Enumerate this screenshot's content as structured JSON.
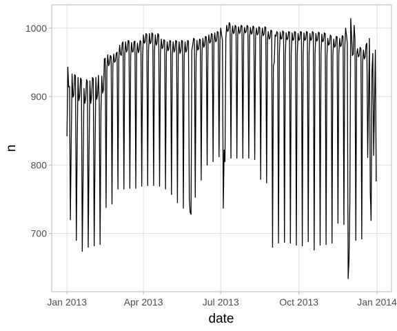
{
  "chart_data": {
    "type": "line",
    "xlabel": "date",
    "ylabel": "n",
    "color": "#000000",
    "grid": true,
    "xlim": [
      "2012-12-14",
      "2014-01-18"
    ],
    "xticks": [
      {
        "value": "2013-01-01",
        "label": "Jan 2013"
      },
      {
        "value": "2013-04-01",
        "label": "Apr 2013"
      },
      {
        "value": "2013-07-01",
        "label": "Jul 2013"
      },
      {
        "value": "2013-10-01",
        "label": "Oct 2013"
      },
      {
        "value": "2014-01-01",
        "label": "Jan 2014"
      }
    ],
    "ylim": [
      615,
      1034
    ],
    "yticks": [
      700,
      800,
      900,
      1000
    ],
    "x": [
      "2013-01-01",
      "2013-01-02",
      "2013-01-03",
      "2013-01-04",
      "2013-01-05",
      "2013-01-06",
      "2013-01-07",
      "2013-01-08",
      "2013-01-09",
      "2013-01-10",
      "2013-01-11",
      "2013-01-12",
      "2013-01-13",
      "2013-01-14",
      "2013-01-15",
      "2013-01-16",
      "2013-01-17",
      "2013-01-18",
      "2013-01-19",
      "2013-01-20",
      "2013-01-21",
      "2013-01-22",
      "2013-01-23",
      "2013-01-24",
      "2013-01-25",
      "2013-01-26",
      "2013-01-27",
      "2013-01-28",
      "2013-01-29",
      "2013-01-30",
      "2013-01-31",
      "2013-02-01",
      "2013-02-02",
      "2013-02-03",
      "2013-02-04",
      "2013-02-05",
      "2013-02-06",
      "2013-02-07",
      "2013-02-08",
      "2013-02-09",
      "2013-02-10",
      "2013-02-11",
      "2013-02-12",
      "2013-02-13",
      "2013-02-14",
      "2013-02-15",
      "2013-02-16",
      "2013-02-17",
      "2013-02-18",
      "2013-02-19",
      "2013-02-20",
      "2013-02-21",
      "2013-02-22",
      "2013-02-23",
      "2013-02-24",
      "2013-02-25",
      "2013-02-26",
      "2013-02-27",
      "2013-02-28",
      "2013-03-01",
      "2013-03-02",
      "2013-03-03",
      "2013-03-04",
      "2013-03-05",
      "2013-03-06",
      "2013-03-07",
      "2013-03-08",
      "2013-03-09",
      "2013-03-10",
      "2013-03-11",
      "2013-03-12",
      "2013-03-13",
      "2013-03-14",
      "2013-03-15",
      "2013-03-16",
      "2013-03-17",
      "2013-03-18",
      "2013-03-19",
      "2013-03-20",
      "2013-03-21",
      "2013-03-22",
      "2013-03-23",
      "2013-03-24",
      "2013-03-25",
      "2013-03-26",
      "2013-03-27",
      "2013-03-28",
      "2013-03-29",
      "2013-03-30",
      "2013-03-31",
      "2013-04-01",
      "2013-04-02",
      "2013-04-03",
      "2013-04-04",
      "2013-04-05",
      "2013-04-06",
      "2013-04-07",
      "2013-04-08",
      "2013-04-09",
      "2013-04-10",
      "2013-04-11",
      "2013-04-12",
      "2013-04-13",
      "2013-04-14",
      "2013-04-15",
      "2013-04-16",
      "2013-04-17",
      "2013-04-18",
      "2013-04-19",
      "2013-04-20",
      "2013-04-21",
      "2013-04-22",
      "2013-04-23",
      "2013-04-24",
      "2013-04-25",
      "2013-04-26",
      "2013-04-27",
      "2013-04-28",
      "2013-04-29",
      "2013-04-30",
      "2013-05-01",
      "2013-05-02",
      "2013-05-03",
      "2013-05-04",
      "2013-05-05",
      "2013-05-06",
      "2013-05-07",
      "2013-05-08",
      "2013-05-09",
      "2013-05-10",
      "2013-05-11",
      "2013-05-12",
      "2013-05-13",
      "2013-05-14",
      "2013-05-15",
      "2013-05-16",
      "2013-05-17",
      "2013-05-18",
      "2013-05-19",
      "2013-05-20",
      "2013-05-21",
      "2013-05-22",
      "2013-05-23",
      "2013-05-24",
      "2013-05-25",
      "2013-05-26",
      "2013-05-27",
      "2013-05-28",
      "2013-05-29",
      "2013-05-30",
      "2013-05-31",
      "2013-06-01",
      "2013-06-02",
      "2013-06-03",
      "2013-06-04",
      "2013-06-05",
      "2013-06-06",
      "2013-06-07",
      "2013-06-08",
      "2013-06-09",
      "2013-06-10",
      "2013-06-11",
      "2013-06-12",
      "2013-06-13",
      "2013-06-14",
      "2013-06-15",
      "2013-06-16",
      "2013-06-17",
      "2013-06-18",
      "2013-06-19",
      "2013-06-20",
      "2013-06-21",
      "2013-06-22",
      "2013-06-23",
      "2013-06-24",
      "2013-06-25",
      "2013-06-26",
      "2013-06-27",
      "2013-06-28",
      "2013-06-29",
      "2013-06-30",
      "2013-07-01",
      "2013-07-02",
      "2013-07-03",
      "2013-07-04",
      "2013-07-05",
      "2013-07-06",
      "2013-07-07",
      "2013-07-08",
      "2013-07-09",
      "2013-07-10",
      "2013-07-11",
      "2013-07-12",
      "2013-07-13",
      "2013-07-14",
      "2013-07-15",
      "2013-07-16",
      "2013-07-17",
      "2013-07-18",
      "2013-07-19",
      "2013-07-20",
      "2013-07-21",
      "2013-07-22",
      "2013-07-23",
      "2013-07-24",
      "2013-07-25",
      "2013-07-26",
      "2013-07-27",
      "2013-07-28",
      "2013-07-29",
      "2013-07-30",
      "2013-07-31",
      "2013-08-01",
      "2013-08-02",
      "2013-08-03",
      "2013-08-04",
      "2013-08-05",
      "2013-08-06",
      "2013-08-07",
      "2013-08-08",
      "2013-08-09",
      "2013-08-10",
      "2013-08-11",
      "2013-08-12",
      "2013-08-13",
      "2013-08-14",
      "2013-08-15",
      "2013-08-16",
      "2013-08-17",
      "2013-08-18",
      "2013-08-19",
      "2013-08-20",
      "2013-08-21",
      "2013-08-22",
      "2013-08-23",
      "2013-08-24",
      "2013-08-25",
      "2013-08-26",
      "2013-08-27",
      "2013-08-28",
      "2013-08-29",
      "2013-08-30",
      "2013-08-31",
      "2013-09-01",
      "2013-09-02",
      "2013-09-03",
      "2013-09-04",
      "2013-09-05",
      "2013-09-06",
      "2013-09-07",
      "2013-09-08",
      "2013-09-09",
      "2013-09-10",
      "2013-09-11",
      "2013-09-12",
      "2013-09-13",
      "2013-09-14",
      "2013-09-15",
      "2013-09-16",
      "2013-09-17",
      "2013-09-18",
      "2013-09-19",
      "2013-09-20",
      "2013-09-21",
      "2013-09-22",
      "2013-09-23",
      "2013-09-24",
      "2013-09-25",
      "2013-09-26",
      "2013-09-27",
      "2013-09-28",
      "2013-09-29",
      "2013-09-30",
      "2013-10-01",
      "2013-10-02",
      "2013-10-03",
      "2013-10-04",
      "2013-10-05",
      "2013-10-06",
      "2013-10-07",
      "2013-10-08",
      "2013-10-09",
      "2013-10-10",
      "2013-10-11",
      "2013-10-12",
      "2013-10-13",
      "2013-10-14",
      "2013-10-15",
      "2013-10-16",
      "2013-10-17",
      "2013-10-18",
      "2013-10-19",
      "2013-10-20",
      "2013-10-21",
      "2013-10-22",
      "2013-10-23",
      "2013-10-24",
      "2013-10-25",
      "2013-10-26",
      "2013-10-27",
      "2013-10-28",
      "2013-10-29",
      "2013-10-30",
      "2013-10-31",
      "2013-11-01",
      "2013-11-02",
      "2013-11-03",
      "2013-11-04",
      "2013-11-05",
      "2013-11-06",
      "2013-11-07",
      "2013-11-08",
      "2013-11-09",
      "2013-11-10",
      "2013-11-11",
      "2013-11-12",
      "2013-11-13",
      "2013-11-14",
      "2013-11-15",
      "2013-11-16",
      "2013-11-17",
      "2013-11-18",
      "2013-11-19",
      "2013-11-20",
      "2013-11-21",
      "2013-11-22",
      "2013-11-23",
      "2013-11-24",
      "2013-11-25",
      "2013-11-26",
      "2013-11-27",
      "2013-11-28",
      "2013-11-29",
      "2013-11-30",
      "2013-12-01",
      "2013-12-02",
      "2013-12-03",
      "2013-12-04",
      "2013-12-05",
      "2013-12-06",
      "2013-12-07",
      "2013-12-08",
      "2013-12-09",
      "2013-12-10",
      "2013-12-11",
      "2013-12-12",
      "2013-12-13",
      "2013-12-14",
      "2013-12-15",
      "2013-12-16",
      "2013-12-17",
      "2013-12-18",
      "2013-12-19",
      "2013-12-20",
      "2013-12-21",
      "2013-12-22",
      "2013-12-23",
      "2013-12-24",
      "2013-12-25",
      "2013-12-26",
      "2013-12-27",
      "2013-12-28",
      "2013-12-29",
      "2013-12-30",
      "2013-12-31"
    ],
    "values": [
      842,
      943,
      914,
      915,
      720,
      832,
      933,
      899,
      902,
      932,
      930,
      690,
      828,
      928,
      894,
      901,
      927,
      924,
      674,
      786,
      912,
      890,
      897,
      925,
      922,
      680,
      823,
      923,
      890,
      900,
      928,
      926,
      682,
      814,
      928,
      896,
      902,
      931,
      892,
      684,
      880,
      930,
      905,
      910,
      955,
      956,
      738,
      940,
      961,
      945,
      948,
      960,
      958,
      743,
      945,
      962,
      950,
      952,
      963,
      965,
      765,
      955,
      975,
      962,
      960,
      978,
      980,
      765,
      962,
      980,
      965,
      968,
      982,
      981,
      766,
      960,
      979,
      965,
      966,
      980,
      981,
      766,
      962,
      978,
      964,
      968,
      982,
      980,
      769,
      960,
      990,
      978,
      980,
      992,
      990,
      770,
      968,
      992,
      977,
      980,
      993,
      991,
      770,
      967,
      990,
      975,
      978,
      992,
      990,
      769,
      964,
      984,
      970,
      972,
      983,
      982,
      765,
      962,
      980,
      967,
      970,
      982,
      981,
      757,
      962,
      980,
      965,
      968,
      982,
      981,
      745,
      960,
      980,
      963,
      967,
      982,
      981,
      737,
      958,
      980,
      965,
      968,
      982,
      981,
      750,
      731,
      728,
      968,
      975,
      985,
      984,
      753,
      955,
      982,
      968,
      970,
      984,
      983,
      778,
      966,
      985,
      972,
      975,
      988,
      987,
      800,
      978,
      990,
      978,
      980,
      992,
      991,
      805,
      980,
      993,
      980,
      982,
      995,
      994,
      812,
      982,
      1000,
      990,
      982,
      737,
      822,
      805,
      985,
      1004,
      995,
      997,
      1008,
      1005,
      810,
      990,
      1003,
      992,
      994,
      1004,
      1002,
      810,
      990,
      1002,
      992,
      995,
      1004,
      1003,
      810,
      989,
      1001,
      993,
      995,
      1004,
      1002,
      810,
      988,
      1001,
      991,
      993,
      1003,
      1001,
      808,
      988,
      1000,
      990,
      992,
      1002,
      1000,
      779,
      986,
      1000,
      989,
      991,
      1002,
      1001,
      774,
      983,
      995,
      984,
      986,
      997,
      996,
      680,
      945,
      950,
      990,
      988,
      995,
      993,
      686,
      962,
      994,
      984,
      985,
      996,
      994,
      687,
      960,
      993,
      983,
      985,
      995,
      994,
      686,
      962,
      993,
      982,
      984,
      995,
      994,
      683,
      961,
      992,
      982,
      984,
      995,
      994,
      682,
      962,
      993,
      982,
      984,
      995,
      994,
      688,
      963,
      992,
      982,
      984,
      995,
      993,
      676,
      962,
      992,
      981,
      983,
      994,
      993,
      683,
      962,
      991,
      980,
      982,
      993,
      992,
      684,
      958,
      985,
      975,
      977,
      990,
      988,
      686,
      960,
      984,
      972,
      974,
      988,
      987,
      715,
      962,
      985,
      973,
      975,
      989,
      988,
      713,
      970,
      1000,
      990,
      978,
      634,
      661,
      745,
      1014,
      990,
      960,
      962,
      1004,
      985,
      690,
      962,
      970,
      958,
      960,
      972,
      970,
      692,
      950,
      968,
      955,
      958,
      975,
      978,
      811,
      895,
      985,
      761,
      719,
      936,
      963,
      814,
      888,
      968,
      776
    ]
  }
}
